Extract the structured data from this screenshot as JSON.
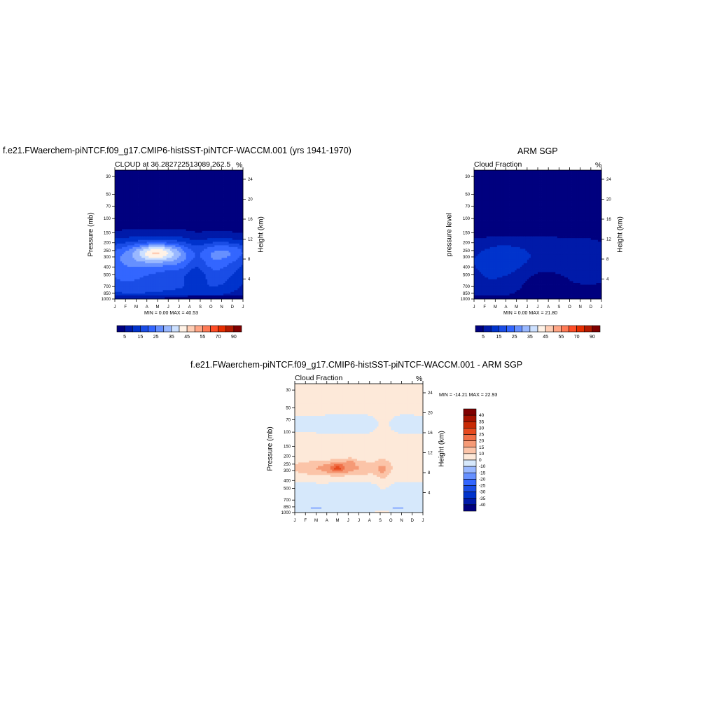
{
  "panels": [
    {
      "title": "f.e21.FWaerchem-piNTCF.f09_g17.CMIP6-histSST-piNTCF-WACCM.001 (yrs 1941-1970)",
      "left_string": "CLOUD at 36.282722513089,262.5",
      "right_string": "%",
      "ylabel": "Pressure (mb)",
      "ylabel_right": "Height (km)",
      "minmax": "MIN =   0.00 MAX =  40.53"
    },
    {
      "title": "ARM SGP",
      "left_string": "Cloud Fraction",
      "right_string": "%",
      "ylabel": "pressure level",
      "ylabel_right": "Height (km)",
      "minmax": "MIN =   0.00 MAX =  21.80"
    },
    {
      "title": "f.e21.FWaerchem-piNTCF.f09_g17.CMIP6-histSST-piNTCF-WACCM.001 - ARM SGP",
      "left_string": "Cloud Fraction",
      "right_string": "%",
      "ylabel": "Pressure (mb)",
      "ylabel_right": "Height (km)",
      "minmax": "MIN = -14.21 MAX =  22.93"
    }
  ],
  "chart_data": [
    {
      "type": "heatmap",
      "title": "CLOUD at 36.282722513089,262.5",
      "xlabel": "",
      "ylabel": "Pressure (mb)",
      "ylabel_right": "Height (km)",
      "x_ticks": [
        "J",
        "F",
        "M",
        "A",
        "M",
        "J",
        "J",
        "A",
        "S",
        "O",
        "N",
        "D",
        "J"
      ],
      "y_ticks": [
        30,
        50,
        70,
        100,
        150,
        200,
        250,
        300,
        400,
        500,
        700,
        850,
        1000
      ],
      "y_right_ticks": [
        24,
        20,
        16,
        12,
        8,
        4
      ],
      "y_scale": "log",
      "ylim": [
        1000,
        25
      ],
      "levels": [
        5,
        10,
        15,
        20,
        25,
        30,
        35,
        40,
        45,
        50,
        55,
        60,
        70,
        80,
        90
      ],
      "colorbar_labels": [
        "5",
        "15",
        "25",
        "35",
        "45",
        "55",
        "70",
        "90"
      ],
      "min": 0.0,
      "max": 40.53,
      "colors": [
        "#00007f",
        "#001aa9",
        "#0033cc",
        "#1a4de6",
        "#3366ff",
        "#6690ff",
        "#99b8ff",
        "#cce0ff",
        "#fff2e6",
        "#ffcdb4",
        "#ffa585",
        "#ff7a55",
        "#ff4d26",
        "#e62e00",
        "#b31a00",
        "#7f0000"
      ]
    },
    {
      "type": "heatmap",
      "title": "Cloud Fraction",
      "xlabel": "",
      "ylabel": "pressure level",
      "ylabel_right": "Height (km)",
      "x_ticks": [
        "J",
        "F",
        "M",
        "A",
        "M",
        "J",
        "J",
        "A",
        "S",
        "O",
        "N",
        "D",
        "J"
      ],
      "y_ticks": [
        30,
        50,
        70,
        100,
        150,
        200,
        250,
        300,
        400,
        500,
        700,
        850,
        1000
      ],
      "y_right_ticks": [
        24,
        20,
        16,
        12,
        8,
        4
      ],
      "y_scale": "log",
      "ylim": [
        1000,
        25
      ],
      "levels": [
        5,
        10,
        15,
        20,
        25,
        30,
        35,
        40,
        45,
        50,
        55,
        60,
        70,
        80,
        90
      ],
      "colorbar_labels": [
        "5",
        "15",
        "25",
        "35",
        "45",
        "55",
        "70",
        "90"
      ],
      "min": 0.0,
      "max": 21.8,
      "colors": [
        "#00007f",
        "#001aa9",
        "#0033cc",
        "#1a4de6",
        "#3366ff",
        "#6690ff",
        "#99b8ff",
        "#cce0ff",
        "#fff2e6",
        "#ffcdb4",
        "#ffa585",
        "#ff7a55",
        "#ff4d26",
        "#e62e00",
        "#b31a00",
        "#7f0000"
      ]
    },
    {
      "type": "heatmap",
      "title": "Cloud Fraction",
      "xlabel": "",
      "ylabel": "Pressure (mb)",
      "ylabel_right": "Height (km)",
      "x_ticks": [
        "J",
        "F",
        "M",
        "A",
        "M",
        "J",
        "J",
        "A",
        "S",
        "O",
        "N",
        "D",
        "J"
      ],
      "y_ticks": [
        30,
        50,
        70,
        100,
        150,
        200,
        250,
        300,
        400,
        500,
        700,
        850,
        1000
      ],
      "y_right_ticks": [
        24,
        20,
        16,
        12,
        8,
        4
      ],
      "y_scale": "log",
      "ylim": [
        1000,
        25
      ],
      "levels": [
        -40,
        -35,
        -30,
        -25,
        -20,
        -15,
        -10,
        0,
        10,
        15,
        20,
        25,
        30,
        35,
        40
      ],
      "colorbar_labels": [
        "40",
        "35",
        "30",
        "25",
        "20",
        "15",
        "10",
        "0",
        "-10",
        "-15",
        "-20",
        "-25",
        "-30",
        "-35",
        "-40"
      ],
      "min": -14.21,
      "max": 22.93,
      "colors": [
        "#00007f",
        "#001aa9",
        "#0033cc",
        "#1a4de6",
        "#3366ff",
        "#6690ff",
        "#99b8ff",
        "#d6e8fb",
        "#fde9d9",
        "#fbc4a8",
        "#f59a76",
        "#f07048",
        "#e64a1f",
        "#c82a05",
        "#a61200",
        "#7f0000"
      ]
    }
  ]
}
